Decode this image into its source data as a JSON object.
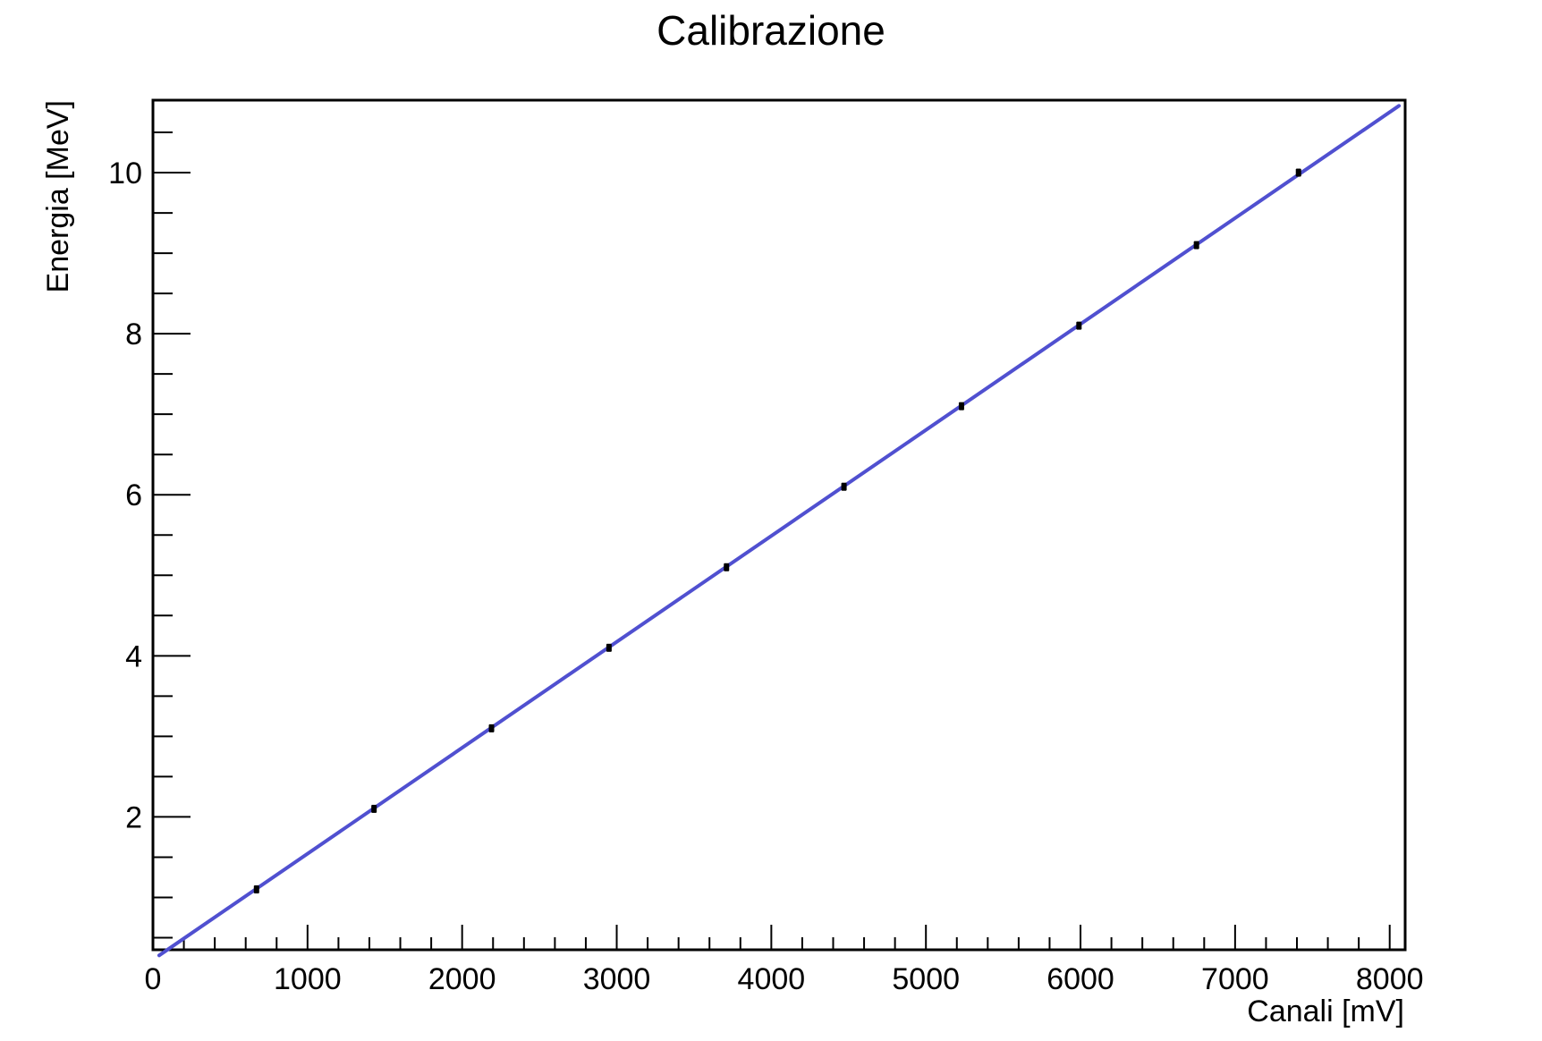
{
  "chart_data": {
    "type": "scatter",
    "title": "Calibrazione",
    "xlabel": "Canali [mV]",
    "ylabel": "Energia [MeV]",
    "xlim": [
      0,
      8100
    ],
    "ylim": [
      0.35,
      10.9
    ],
    "x_ticks": [
      0,
      1000,
      2000,
      3000,
      4000,
      5000,
      6000,
      7000,
      8000
    ],
    "x_tick_labels": [
      "0",
      "1000",
      "2000",
      "3000",
      "4000",
      "5000",
      "6000",
      "7000",
      "8000"
    ],
    "y_ticks": [
      2,
      4,
      6,
      8,
      10
    ],
    "y_tick_labels": [
      "2",
      "4",
      "6",
      "8",
      "10"
    ],
    "grid": false,
    "series": [
      {
        "type": "scatter",
        "color": "#000000",
        "x": [
          670,
          1430,
          2190,
          2950,
          3710,
          4470,
          5230,
          5990,
          6750,
          7410
        ],
        "y": [
          1.1,
          2.1,
          3.1,
          4.1,
          5.1,
          6.1,
          7.1,
          8.1,
          9.1,
          10.0
        ],
        "y_err": [
          0.05,
          0.05,
          0.05,
          0.05,
          0.05,
          0.05,
          0.05,
          0.05,
          0.05,
          0.05
        ]
      },
      {
        "type": "line",
        "color": "#5050d0",
        "x": [
          40,
          8060
        ],
        "y": [
          0.28,
          10.83
        ]
      }
    ]
  }
}
